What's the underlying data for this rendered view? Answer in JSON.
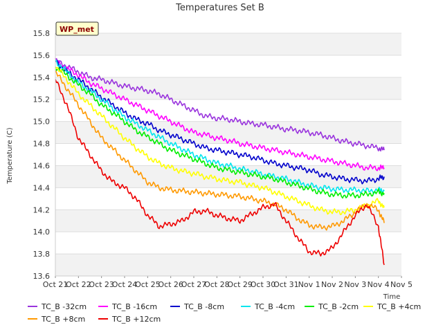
{
  "chart_data": {
    "type": "line",
    "title": "Temperatures Set B",
    "xlabel": "Time",
    "ylabel": "Temperature (C)",
    "badge": "WP_met",
    "ylim": [
      13.6,
      15.8
    ],
    "xlim": [
      "Oct 21",
      "Nov 5"
    ],
    "x_tick_labels": [
      "Oct 21",
      "Oct 22",
      "Oct 23",
      "Oct 24",
      "Oct 25",
      "Oct 26",
      "Oct 27",
      "Oct 28",
      "Oct 29",
      "Oct 30",
      "Oct 31",
      "Nov 1",
      "Nov 2",
      "Nov 3",
      "Nov 4",
      "Nov 5"
    ],
    "y_ticks": [
      "13.6",
      "13.8",
      "14.0",
      "14.2",
      "14.4",
      "14.6",
      "14.8",
      "15.0",
      "15.2",
      "15.4",
      "15.6",
      "15.8"
    ],
    "grid": "horizontal bands",
    "legend_position": "bottom",
    "x": [
      "Oct 21",
      "Oct 21 12:00",
      "Oct 22",
      "Oct 22 12:00",
      "Oct 23",
      "Oct 23 12:00",
      "Oct 24",
      "Oct 24 12:00",
      "Oct 25",
      "Oct 25 12:00",
      "Oct 26",
      "Oct 26 12:00",
      "Oct 27",
      "Oct 27 12:00",
      "Oct 28",
      "Oct 28 12:00",
      "Oct 29",
      "Oct 29 12:00",
      "Oct 30",
      "Oct 30 12:00",
      "Oct 31",
      "Oct 31 12:00",
      "Nov 1",
      "Nov 1 12:00",
      "Nov 2",
      "Nov 2 12:00",
      "Nov 3",
      "Nov 3 12:00",
      "Nov 4",
      "Nov 4 06:00"
    ],
    "series": [
      {
        "name": "TC_B -32cm",
        "color": "#9933dd",
        "values": [
          15.55,
          15.5,
          15.45,
          15.4,
          15.38,
          15.35,
          15.32,
          15.3,
          15.28,
          15.25,
          15.2,
          15.15,
          15.1,
          15.05,
          15.03,
          15.02,
          15.0,
          14.98,
          14.97,
          14.95,
          14.93,
          14.92,
          14.9,
          14.88,
          14.85,
          14.82,
          14.8,
          14.78,
          14.76,
          14.74
        ]
      },
      {
        "name": "TC_B -16cm",
        "color": "#ff00ff",
        "values": [
          15.55,
          15.48,
          15.42,
          15.35,
          15.3,
          15.25,
          15.2,
          15.15,
          15.1,
          15.05,
          15.0,
          14.95,
          14.9,
          14.88,
          14.85,
          14.83,
          14.8,
          14.78,
          14.76,
          14.74,
          14.72,
          14.7,
          14.68,
          14.66,
          14.64,
          14.62,
          14.6,
          14.58,
          14.58,
          14.58
        ]
      },
      {
        "name": "TC_B -8cm",
        "color": "#0000cc",
        "values": [
          15.55,
          15.45,
          15.38,
          15.3,
          15.22,
          15.15,
          15.08,
          15.02,
          14.98,
          14.92,
          14.88,
          14.84,
          14.8,
          14.76,
          14.74,
          14.72,
          14.7,
          14.68,
          14.65,
          14.62,
          14.6,
          14.58,
          14.56,
          14.52,
          14.5,
          14.48,
          14.47,
          14.46,
          14.48,
          14.5
        ]
      },
      {
        "name": "TC_B -4cm",
        "color": "#00e5ee",
        "values": [
          15.55,
          15.45,
          15.35,
          15.28,
          15.2,
          15.12,
          15.04,
          14.98,
          14.92,
          14.86,
          14.8,
          14.75,
          14.7,
          14.66,
          14.62,
          14.6,
          14.57,
          14.55,
          14.52,
          14.5,
          14.48,
          14.45,
          14.42,
          14.4,
          14.39,
          14.38,
          14.38,
          14.37,
          14.38,
          14.37
        ]
      },
      {
        "name": "TC_B -2cm",
        "color": "#00ee00",
        "values": [
          15.5,
          15.42,
          15.33,
          15.25,
          15.15,
          15.08,
          15.0,
          14.92,
          14.86,
          14.8,
          14.74,
          14.7,
          14.66,
          14.62,
          14.58,
          14.56,
          14.54,
          14.52,
          14.5,
          14.48,
          14.45,
          14.42,
          14.39,
          14.36,
          14.34,
          14.33,
          14.33,
          14.34,
          14.36,
          14.35
        ]
      },
      {
        "name": "TC_B +4cm",
        "color": "#ffff00",
        "values": [
          15.5,
          15.38,
          15.25,
          15.15,
          15.05,
          14.95,
          14.85,
          14.76,
          14.68,
          14.62,
          14.58,
          14.55,
          14.53,
          14.5,
          14.48,
          14.46,
          14.45,
          14.42,
          14.4,
          14.36,
          14.32,
          14.28,
          14.24,
          14.2,
          14.18,
          14.18,
          14.2,
          14.24,
          14.28,
          14.22
        ]
      },
      {
        "name": "TC_B +8cm",
        "color": "#ff9900",
        "values": [
          15.45,
          15.3,
          15.15,
          15.0,
          14.85,
          14.75,
          14.65,
          14.55,
          14.45,
          14.4,
          14.38,
          14.37,
          14.36,
          14.35,
          14.34,
          14.33,
          14.32,
          14.3,
          14.28,
          14.25,
          14.2,
          14.12,
          14.06,
          14.04,
          14.05,
          14.1,
          14.18,
          14.25,
          14.2,
          14.08
        ]
      },
      {
        "name": "TC_B +12cm",
        "color": "#ee0000",
        "values": [
          15.38,
          15.15,
          14.85,
          14.7,
          14.55,
          14.45,
          14.4,
          14.3,
          14.15,
          14.05,
          14.07,
          14.1,
          14.18,
          14.19,
          14.15,
          14.12,
          14.1,
          14.16,
          14.22,
          14.25,
          14.1,
          13.95,
          13.82,
          13.8,
          13.85,
          14.0,
          14.15,
          14.25,
          14.05,
          13.7
        ]
      }
    ]
  }
}
